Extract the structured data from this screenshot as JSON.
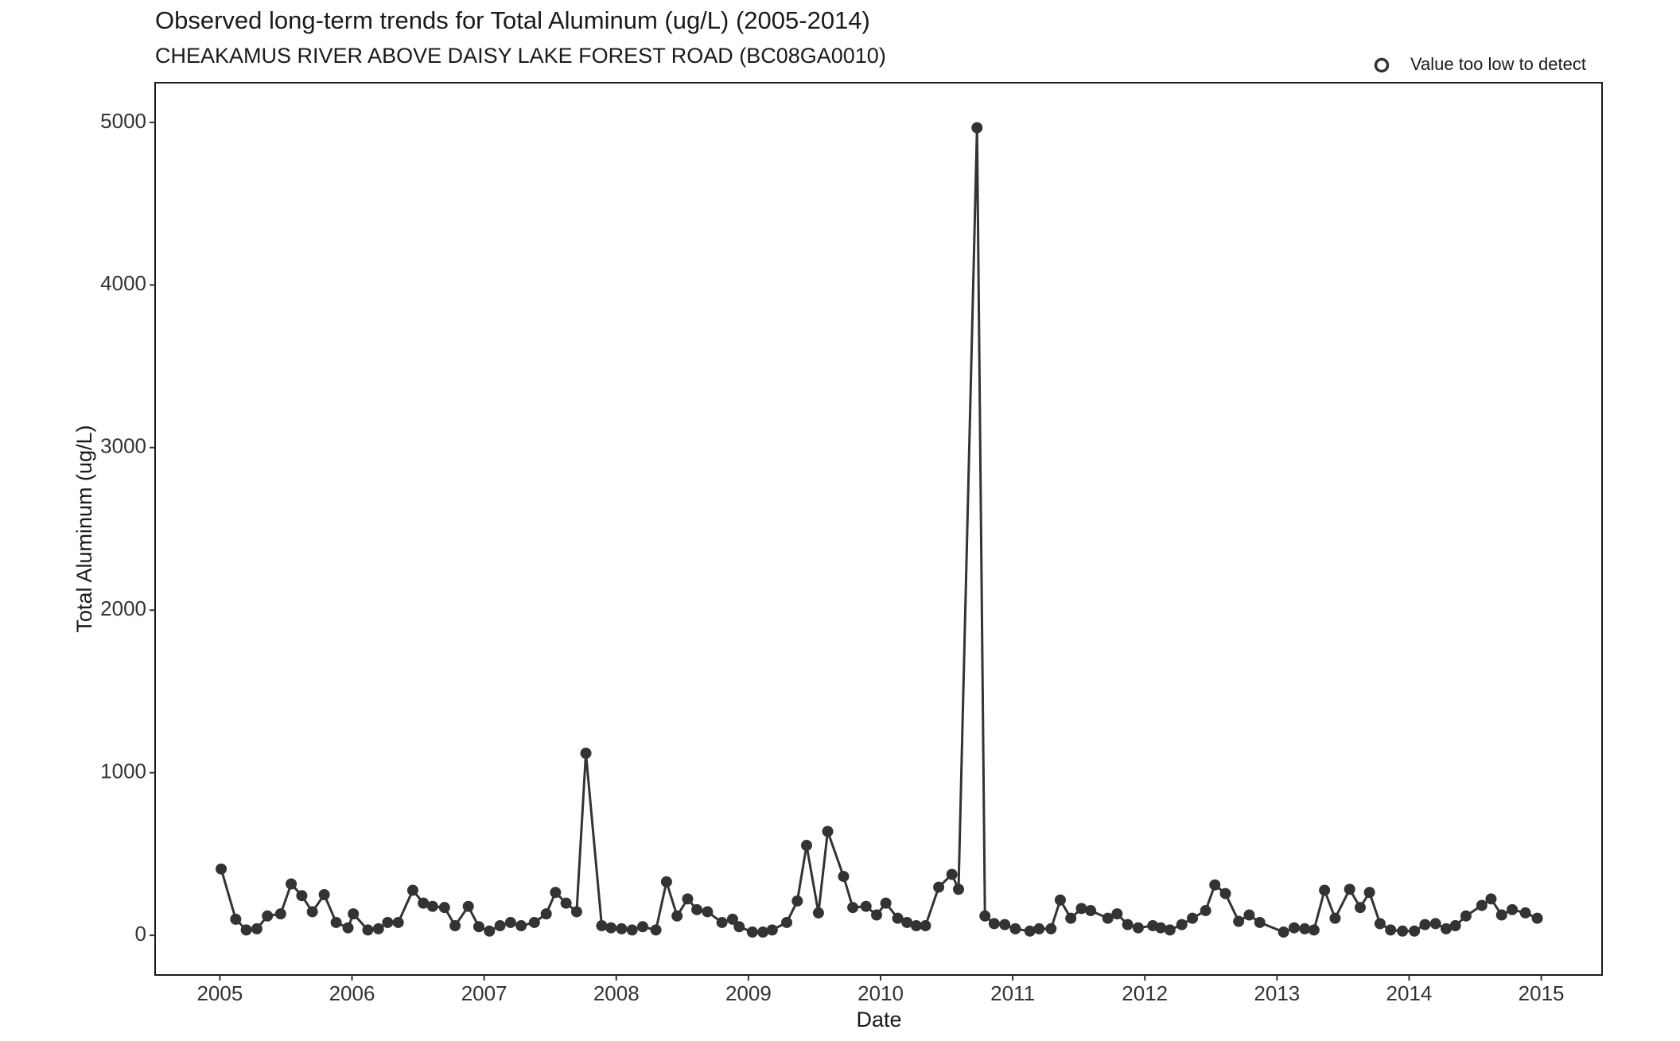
{
  "chart_data": {
    "type": "line",
    "title": "Observed long-term trends for Total Aluminum (ug/L) (2005-2014)",
    "subtitle": "CHEAKAMUS RIVER ABOVE DAISY LAKE FOREST ROAD (BC08GA0010)",
    "x_label": "Date",
    "y_label": "Total Aluminum (ug/L)",
    "legend": {
      "label": "Value too low to detect",
      "position": "top-right"
    },
    "color": "#333333",
    "x": [
      2005.01,
      2005.12,
      2005.2,
      2005.28,
      2005.36,
      2005.46,
      2005.54,
      2005.62,
      2005.7,
      2005.79,
      2005.88,
      2005.97,
      2006.01,
      2006.12,
      2006.2,
      2006.27,
      2006.35,
      2006.46,
      2006.54,
      2006.61,
      2006.7,
      2006.78,
      2006.88,
      2006.96,
      2007.04,
      2007.12,
      2007.2,
      2007.28,
      2007.38,
      2007.47,
      2007.54,
      2007.62,
      2007.7,
      2007.77,
      2007.89,
      2007.96,
      2008.04,
      2008.12,
      2008.2,
      2008.3,
      2008.38,
      2008.46,
      2008.54,
      2008.61,
      2008.69,
      2008.8,
      2008.88,
      2008.93,
      2009.03,
      2009.11,
      2009.18,
      2009.29,
      2009.37,
      2009.44,
      2009.53,
      2009.6,
      2009.72,
      2009.79,
      2009.89,
      2009.97,
      2010.04,
      2010.13,
      2010.2,
      2010.27,
      2010.34,
      2010.44,
      2010.54,
      2010.59,
      2010.73,
      2010.79,
      2010.86,
      2010.94,
      2011.02,
      2011.13,
      2011.2,
      2011.29,
      2011.36,
      2011.44,
      2011.52,
      2011.59,
      2011.72,
      2011.79,
      2011.87,
      2011.95,
      2012.06,
      2012.12,
      2012.19,
      2012.28,
      2012.36,
      2012.46,
      2012.53,
      2012.61,
      2012.71,
      2012.79,
      2012.87,
      2013.05,
      2013.13,
      2013.21,
      2013.28,
      2013.36,
      2013.44,
      2013.55,
      2013.63,
      2013.7,
      2013.78,
      2013.86,
      2013.95,
      2014.04,
      2014.12,
      2014.2,
      2014.28,
      2014.35,
      2014.43,
      2014.55,
      2014.62,
      2014.7,
      2014.78,
      2014.88,
      2014.97
    ],
    "values": [
      408,
      99,
      33,
      40,
      119,
      132,
      316,
      244,
      145,
      250,
      79,
      46,
      132,
      33,
      40,
      79,
      79,
      277,
      198,
      178,
      171,
      59,
      178,
      53,
      26,
      59,
      79,
      59,
      79,
      132,
      264,
      198,
      145,
      1120,
      59,
      46,
      40,
      33,
      53,
      33,
      329,
      119,
      224,
      158,
      145,
      79,
      99,
      53,
      20,
      20,
      33,
      79,
      211,
      553,
      138,
      639,
      362,
      171,
      178,
      125,
      198,
      105,
      79,
      59,
      59,
      296,
      375,
      283,
      4967,
      119,
      72,
      66,
      40,
      26,
      40,
      40,
      217,
      105,
      165,
      152,
      105,
      132,
      66,
      46,
      59,
      46,
      33,
      66,
      105,
      152,
      310,
      257,
      86,
      125,
      79,
      20,
      46,
      40,
      33,
      277,
      105,
      283,
      171,
      264,
      72,
      33,
      26,
      26,
      66,
      72,
      40,
      59,
      119,
      184,
      224,
      125,
      158,
      138,
      105
    ],
    "xlim": [
      2004.51,
      2015.46
    ],
    "ylim": [
      -244,
      5244
    ],
    "xticks": [
      2005,
      2006,
      2007,
      2008,
      2009,
      2010,
      2011,
      2012,
      2013,
      2014,
      2015
    ],
    "yticks": [
      0,
      1000,
      2000,
      3000,
      4000,
      5000
    ]
  }
}
